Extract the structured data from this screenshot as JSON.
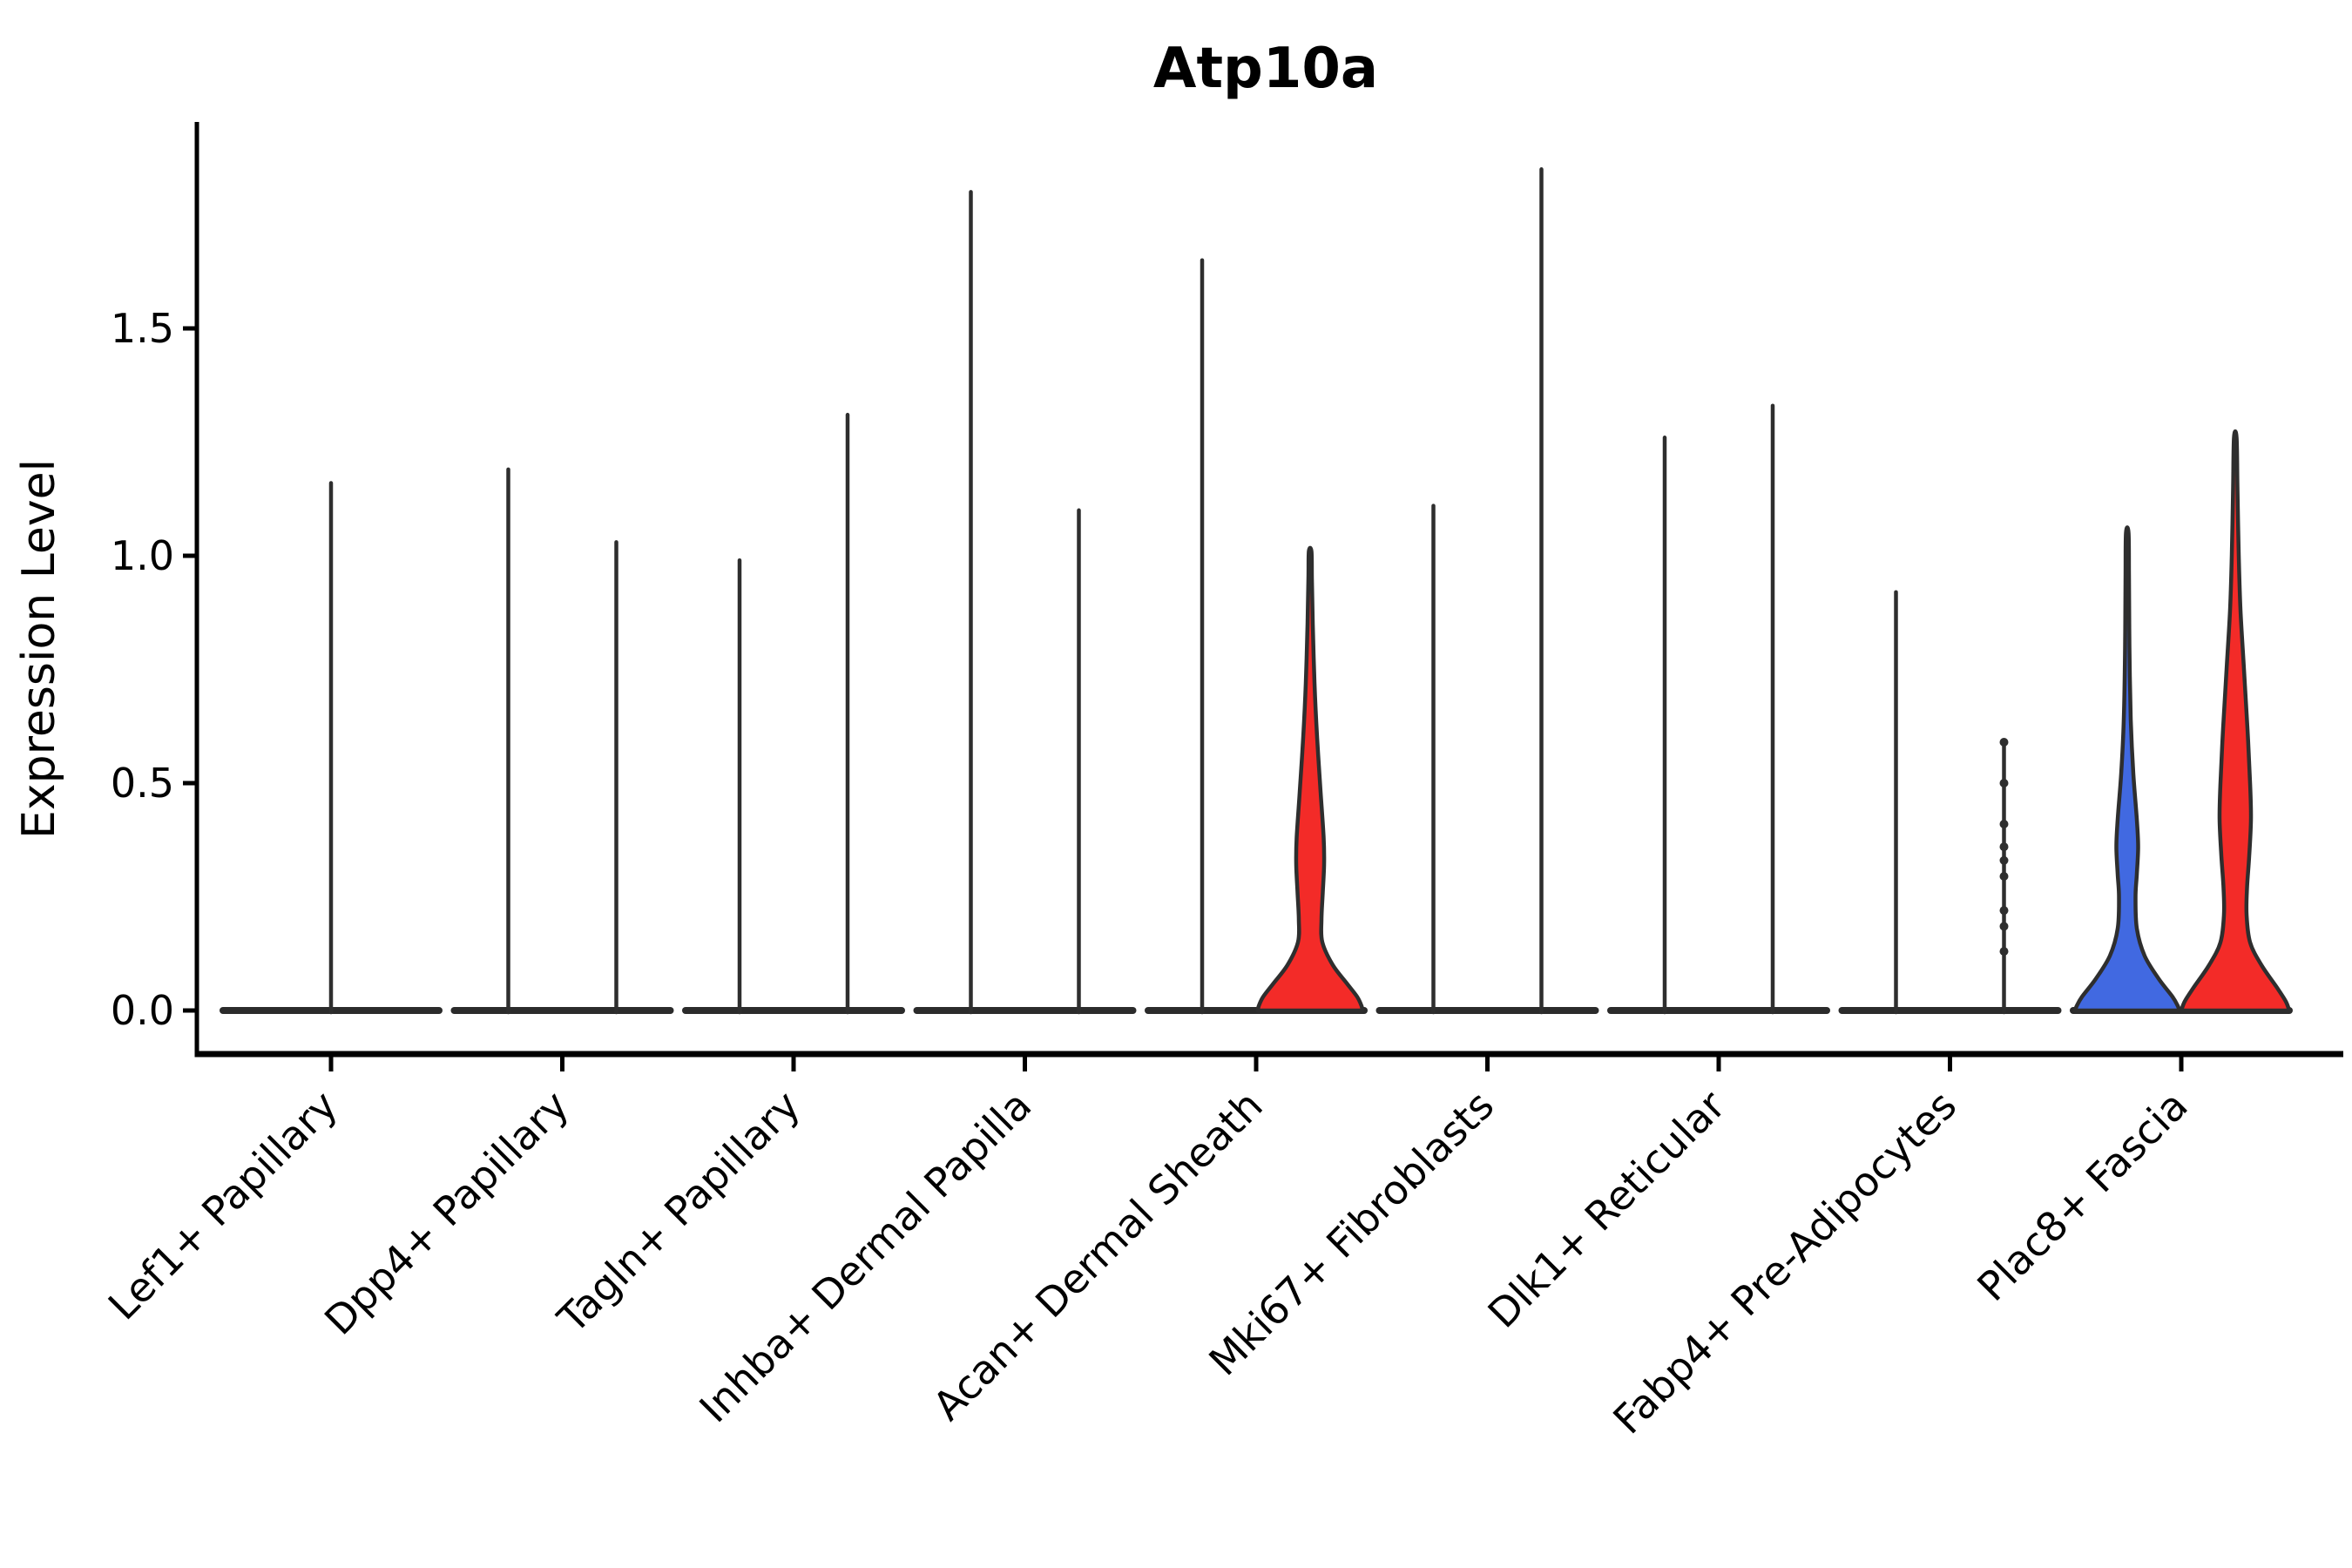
{
  "title": "Atp10a",
  "y_axis": {
    "label": "Expression Level",
    "tick_labels": [
      "0.0",
      "0.5",
      "1.0",
      "1.5"
    ]
  },
  "colors": {
    "red": "#F32B28",
    "blue": "#4169E1",
    "outline": "#2E2E2E",
    "bar": "#2B2B2B",
    "axis": "#000000",
    "background": "#FFFFFF"
  },
  "chart_data": {
    "type": "violin",
    "title": "Atp10a",
    "xlabel": "",
    "ylabel": "Expression Level",
    "ylim": [
      0,
      2.05
    ],
    "y_ticks": [
      {
        "value": 0.0,
        "label": "0.0"
      },
      {
        "value": 0.5,
        "label": "0.5"
      },
      {
        "value": 1.0,
        "label": "1.0"
      },
      {
        "value": 1.5,
        "label": "1.5"
      }
    ],
    "x_tick_rotation": 45,
    "legend": "none",
    "categories": [
      "Lef1+ Papillary",
      "Dpp4+ Papillary",
      "Tagln+ Papillary",
      "Inhba+ Dermal Papilla",
      "Acan+ Dermal Sheath",
      "Mki67+ Fibroblasts",
      "Dlk1+ Reticular",
      "Fabp4+ Pre-Adipocytes",
      "Plac8+ Fascia"
    ],
    "groups": [
      {
        "category": "Lef1+ Papillary",
        "violins": [
          {
            "max": 1.16,
            "fill": "none",
            "shape": "spike"
          }
        ]
      },
      {
        "category": "Dpp4+ Papillary",
        "violins": [
          {
            "max": 1.19,
            "fill": "none",
            "shape": "spike"
          },
          {
            "max": 1.03,
            "fill": "none",
            "shape": "spike"
          }
        ]
      },
      {
        "category": "Tagln+ Papillary",
        "violins": [
          {
            "max": 0.99,
            "fill": "none",
            "shape": "spike"
          },
          {
            "max": 1.31,
            "fill": "none",
            "shape": "spike"
          }
        ]
      },
      {
        "category": "Inhba+ Dermal Papilla",
        "violins": [
          {
            "max": 1.8,
            "fill": "none",
            "shape": "spike"
          },
          {
            "max": 1.1,
            "fill": "none",
            "shape": "spike"
          }
        ]
      },
      {
        "category": "Acan+ Dermal Sheath",
        "violins": [
          {
            "max": 1.65,
            "fill": "none",
            "shape": "spike"
          },
          {
            "max": 1.01,
            "fill": "red",
            "shape": "violin",
            "profile": [
              [
                1.01,
                1.5
              ],
              [
                0.95,
                2
              ],
              [
                0.85,
                3
              ],
              [
                0.72,
                5
              ],
              [
                0.6,
                8
              ],
              [
                0.48,
                12
              ],
              [
                0.38,
                15.5
              ],
              [
                0.32,
                16
              ],
              [
                0.26,
                14.5
              ],
              [
                0.2,
                13
              ],
              [
                0.15,
                14
              ],
              [
                0.1,
                26
              ],
              [
                0.06,
                42
              ],
              [
                0.03,
                54
              ],
              [
                0.01,
                59
              ],
              [
                0,
                60
              ]
            ]
          }
        ]
      },
      {
        "category": "Mki67+ Fibroblasts",
        "violins": [
          {
            "max": 1.11,
            "fill": "none",
            "shape": "spike"
          },
          {
            "max": 1.85,
            "fill": "none",
            "shape": "spike"
          }
        ]
      },
      {
        "category": "Dlk1+ Reticular",
        "violins": [
          {
            "max": 1.26,
            "fill": "none",
            "shape": "spike"
          },
          {
            "max": 1.33,
            "fill": "none",
            "shape": "spike"
          }
        ]
      },
      {
        "category": "Fabp4+ Pre-Adipocytes",
        "violins": [
          {
            "max": 0.92,
            "fill": "none",
            "shape": "spike"
          },
          {
            "max": 0.59,
            "fill": "none",
            "shape": "spike",
            "points": [
              0.59,
              0.5,
              0.41,
              0.36,
              0.33,
              0.295,
              0.22,
              0.185,
              0.13
            ]
          }
        ]
      },
      {
        "category": "Plac8+ Fascia",
        "violins": [
          {
            "max": 1.05,
            "fill": "blue",
            "shape": "violin",
            "profile": [
              [
                1.05,
                1.5
              ],
              [
                0.95,
                2
              ],
              [
                0.8,
                2.5
              ],
              [
                0.64,
                4
              ],
              [
                0.52,
                7
              ],
              [
                0.42,
                11
              ],
              [
                0.36,
                12.5
              ],
              [
                0.3,
                11
              ],
              [
                0.25,
                9.5
              ],
              [
                0.18,
                11
              ],
              [
                0.12,
                20
              ],
              [
                0.07,
                36
              ],
              [
                0.03,
                52
              ],
              [
                0.01,
                58
              ],
              [
                0,
                60
              ]
            ]
          },
          {
            "max": 1.26,
            "fill": "red",
            "shape": "violin",
            "profile": [
              [
                1.26,
                1.5
              ],
              [
                1.15,
                2.5
              ],
              [
                1.0,
                4
              ],
              [
                0.88,
                6
              ],
              [
                0.75,
                10
              ],
              [
                0.62,
                14
              ],
              [
                0.5,
                17
              ],
              [
                0.42,
                18
              ],
              [
                0.34,
                16
              ],
              [
                0.27,
                13.5
              ],
              [
                0.21,
                13
              ],
              [
                0.15,
                17
              ],
              [
                0.1,
                30
              ],
              [
                0.05,
                48
              ],
              [
                0.02,
                58
              ],
              [
                0,
                62
              ]
            ]
          }
        ]
      }
    ]
  }
}
